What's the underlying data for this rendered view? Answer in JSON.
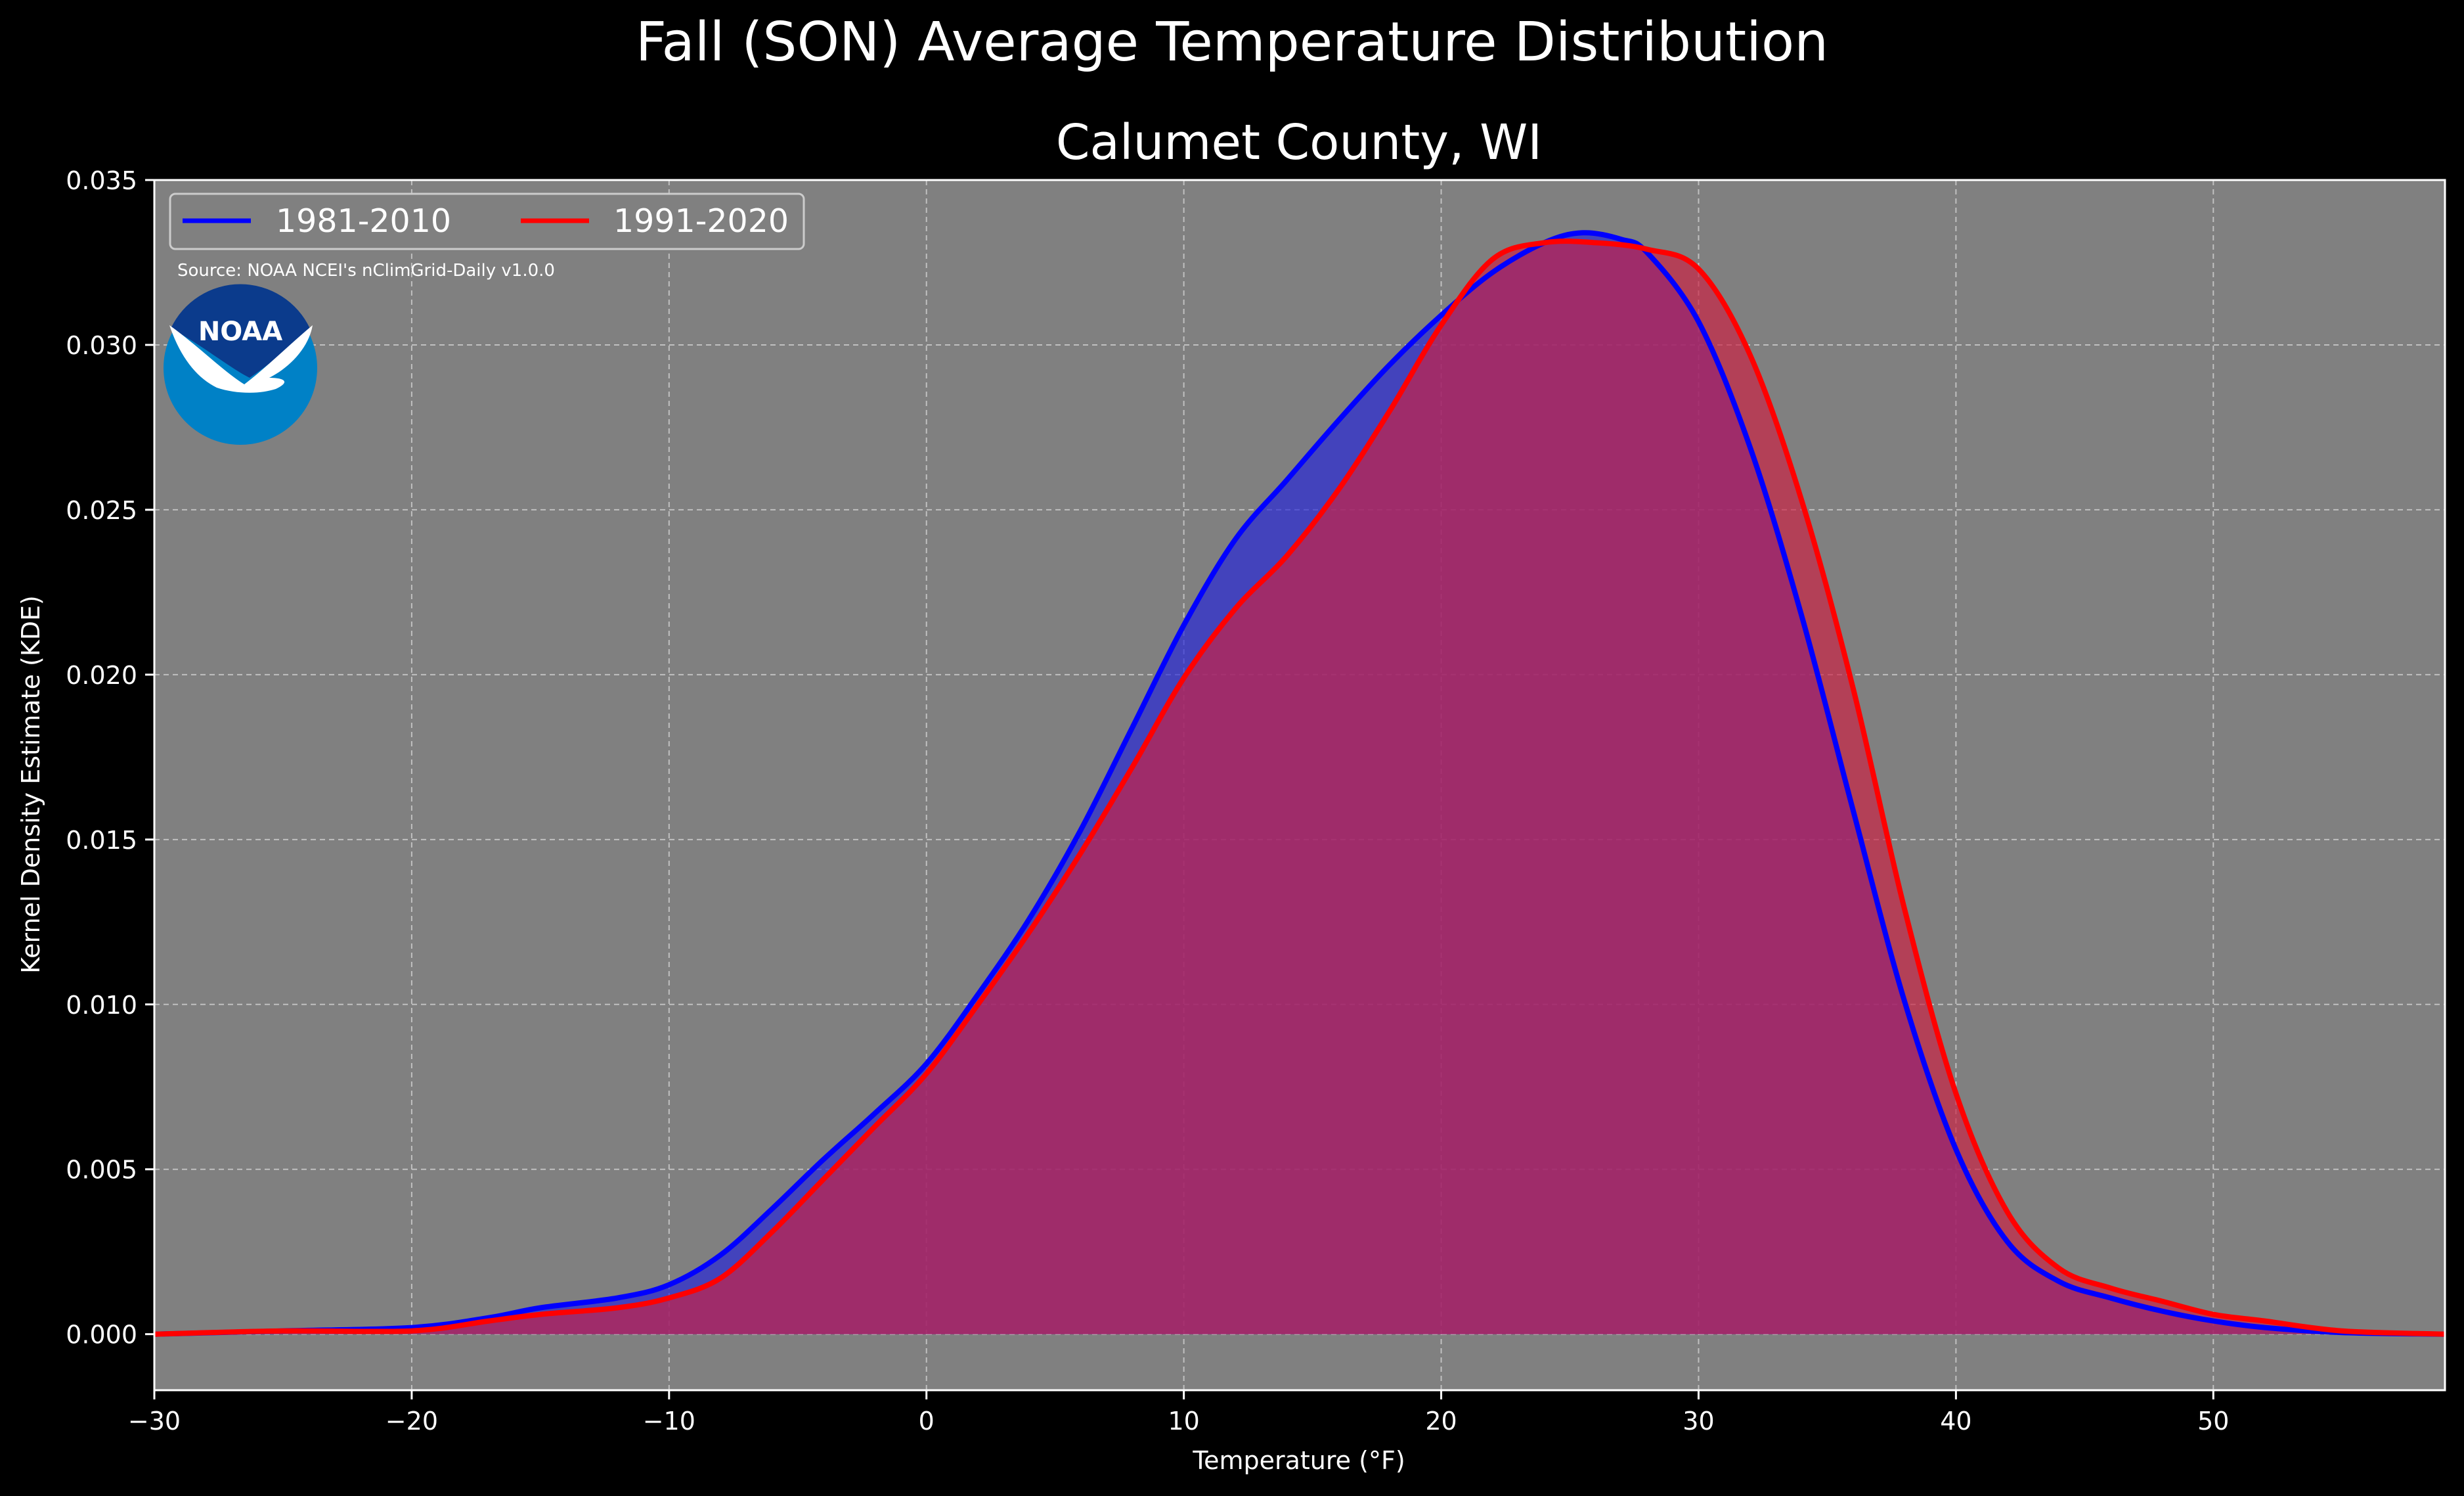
{
  "chart_data": {
    "type": "area",
    "title": "Fall (SON) Average Temperature Distribution",
    "subtitle": "Calumet County, WI",
    "xlabel": "Temperature (°F)",
    "ylabel": "Kernel Density Estimate (KDE)",
    "xlim": [
      -30,
      59
    ],
    "ylim": [
      -0.0017,
      0.035
    ],
    "xticks": [
      -30,
      -20,
      -10,
      0,
      10,
      20,
      30,
      40,
      50
    ],
    "xtick_labels": [
      "−30",
      "−20",
      "−10",
      "0",
      "10",
      "20",
      "30",
      "40",
      "50"
    ],
    "yticks": [
      0.0,
      0.005,
      0.01,
      0.015,
      0.02,
      0.025,
      0.03,
      0.035
    ],
    "ytick_labels": [
      "0.000",
      "0.005",
      "0.010",
      "0.015",
      "0.020",
      "0.025",
      "0.030",
      "0.035"
    ],
    "grid": true,
    "legend_position": "top-left",
    "source_note": "Source: NOAA NCEI's nClimGrid-Daily v1.0.0",
    "logo_text": "NOAA",
    "series": [
      {
        "name": "1981-2010",
        "color": "#0000ff",
        "fill_color": "#2626d9",
        "x": [
          -30,
          -25,
          -20,
          -17,
          -15,
          -12,
          -10,
          -8,
          -6,
          -4,
          -2,
          0,
          2,
          4,
          6,
          8,
          10,
          12,
          14,
          16,
          18,
          20,
          22,
          24,
          25.5,
          27,
          28,
          30,
          32,
          34,
          36,
          38,
          40,
          42,
          44,
          46,
          48,
          50,
          52,
          55,
          59
        ],
        "y": [
          0.0,
          0.0001,
          0.0002,
          0.0005,
          0.0008,
          0.0011,
          0.0015,
          0.0024,
          0.0038,
          0.0053,
          0.0067,
          0.0082,
          0.0103,
          0.0126,
          0.0153,
          0.0184,
          0.0215,
          0.0241,
          0.0259,
          0.0277,
          0.0294,
          0.0309,
          0.0322,
          0.0331,
          0.0334,
          0.0332,
          0.0328,
          0.0307,
          0.0269,
          0.0218,
          0.0159,
          0.0101,
          0.0056,
          0.0028,
          0.0016,
          0.0011,
          0.0007,
          0.0004,
          0.0002,
          5e-05,
          0.0
        ]
      },
      {
        "name": "1991-2020",
        "color": "#ff0000",
        "fill_color": "#cc2244",
        "x": [
          -30,
          -25,
          -20,
          -17,
          -15,
          -12,
          -10,
          -8,
          -6,
          -4,
          -2,
          0,
          2,
          4,
          6,
          8,
          10,
          12,
          14,
          16,
          18,
          20,
          22,
          24,
          26,
          28,
          30,
          32,
          34,
          36,
          38,
          40,
          42,
          44,
          46,
          48,
          50,
          52,
          55,
          59
        ],
        "y": [
          0.0,
          0.0001,
          0.0001,
          0.0004,
          0.0006,
          0.0008,
          0.0011,
          0.0017,
          0.0031,
          0.0047,
          0.0063,
          0.0079,
          0.01,
          0.0122,
          0.0146,
          0.0172,
          0.0199,
          0.022,
          0.0236,
          0.0256,
          0.028,
          0.0306,
          0.0326,
          0.0331,
          0.0331,
          0.0329,
          0.0323,
          0.0297,
          0.0253,
          0.0196,
          0.0129,
          0.0073,
          0.0037,
          0.002,
          0.0014,
          0.001,
          0.0006,
          0.0004,
          0.0001,
          0.0
        ]
      }
    ]
  }
}
